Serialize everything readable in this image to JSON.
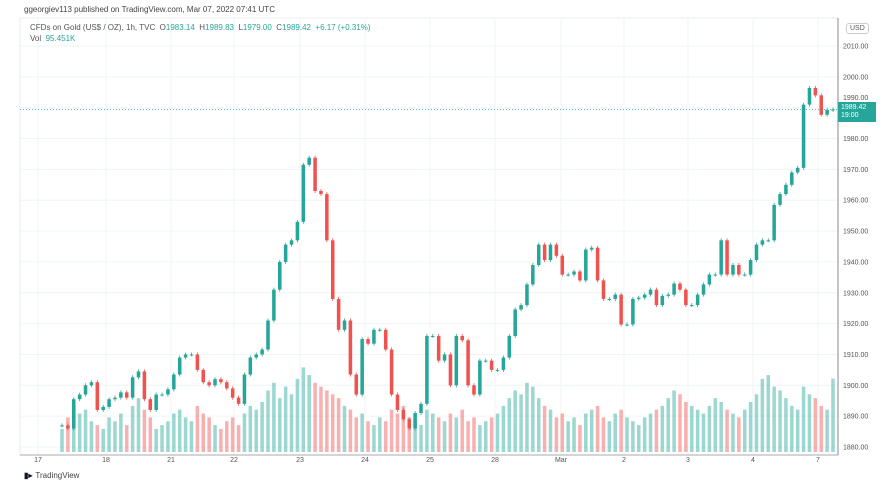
{
  "header": {
    "published": "ggeorgiev113 published on TradingView.com, Mar 07, 2022 07:41 UTC"
  },
  "legend": {
    "symbol": "CFDs on Gold (US$ / OZ), 1h, TVC",
    "open_label": "O",
    "open": "1983.14",
    "high_label": "H",
    "high": "1989.83",
    "low_label": "L",
    "low": "1979.00",
    "close_label": "C",
    "close": "1989.42",
    "change": "+6.17 (+0.31%)",
    "vol_label": "Vol",
    "vol": "95.451K"
  },
  "price_axis": {
    "currency": "USD",
    "last_price": "1989.42",
    "countdown": "19:00"
  },
  "footer": {
    "logo_text": "TradingView"
  },
  "colors": {
    "up": "#26a69a",
    "down": "#ef5350",
    "grid": "#eef6f5"
  },
  "chart_data": {
    "type": "candlestick",
    "y_ticks": [
      "2010.00",
      "2000.00",
      "1990.00",
      "1980.00",
      "1970.00",
      "1960.00",
      "1950.00",
      "1940.00",
      "1930.00",
      "1920.00",
      "1910.00",
      "1900.00",
      "1890.00",
      "1880.00"
    ],
    "ylim": [
      1880,
      2010
    ],
    "x_ticks": [
      "17",
      "18",
      "21",
      "22",
      "23",
      "24",
      "25",
      "28",
      "Mar",
      "2",
      "3",
      "4",
      "7"
    ],
    "grid": true,
    "closes": [
      1887,
      1886,
      1895.5,
      1897,
      1900,
      1901,
      1892,
      1893,
      1895.5,
      1896,
      1897.7,
      1896,
      1902.6,
      1904.5,
      1895.5,
      1892,
      1897,
      1897,
      1898.7,
      1903.5,
      1909,
      1910,
      1910,
      1905,
      1901,
      1900,
      1902,
      1901,
      1899,
      1896,
      1894,
      1903.5,
      1909,
      1910,
      1911.6,
      1921,
      1931,
      1940,
      1945.6,
      1947,
      1953,
      1971.5,
      1973.8,
      1963,
      1962,
      1947,
      1928,
      1918,
      1921,
      1903.5,
      1897,
      1915,
      1913.5,
      1918,
      1918,
      1911.6,
      1897,
      1892,
      1889,
      1886,
      1891,
      1894,
      1916,
      1916,
      1908,
      1910,
      1900,
      1916,
      1914.6,
      1900,
      1897,
      1908,
      1908,
      1905,
      1905,
      1909,
      1916,
      1924.6,
      1926,
      1932.7,
      1939,
      1945.6,
      1940.6,
      1945.6,
      1942,
      1935.9,
      1935.9,
      1936.9,
      1934,
      1944,
      1944.6,
      1934,
      1928,
      1928,
      1929.4,
      1919.7,
      1919.7,
      1928,
      1928.4,
      1929.4,
      1931,
      1926,
      1929,
      1929.4,
      1933,
      1931,
      1926,
      1926,
      1929.4,
      1932.7,
      1935.9,
      1935.9,
      1947,
      1935.9,
      1939,
      1935.9,
      1935.9,
      1940.6,
      1945.6,
      1947,
      1947,
      1958.5,
      1962,
      1965,
      1969,
      1970.5,
      1991,
      1996.4,
      1994,
      1987.7,
      1989.3,
      1989.42
    ],
    "volumes_k": [
      30,
      45,
      60,
      50,
      55,
      40,
      35,
      30,
      45,
      40,
      50,
      35,
      60,
      70,
      55,
      45,
      30,
      35,
      40,
      50,
      55,
      45,
      40,
      60,
      50,
      45,
      35,
      30,
      40,
      45,
      35,
      50,
      60,
      55,
      65,
      80,
      90,
      70,
      85,
      75,
      95,
      110,
      100,
      90,
      85,
      80,
      75,
      70,
      60,
      55,
      45,
      50,
      40,
      35,
      45,
      40,
      55,
      50,
      60,
      45,
      40,
      35,
      55,
      50,
      45,
      40,
      50,
      45,
      55,
      40,
      45,
      35,
      40,
      45,
      50,
      60,
      70,
      80,
      75,
      90,
      85,
      70,
      60,
      55,
      45,
      50,
      40,
      45,
      35,
      50,
      55,
      60,
      45,
      40,
      50,
      55,
      45,
      40,
      35,
      45,
      50,
      55,
      60,
      70,
      80,
      75,
      65,
      60,
      55,
      50,
      60,
      70,
      65,
      55,
      50,
      45,
      55,
      65,
      75,
      95,
      100,
      85,
      80,
      70,
      60,
      55,
      85,
      75,
      70,
      60,
      55,
      95.451
    ]
  }
}
